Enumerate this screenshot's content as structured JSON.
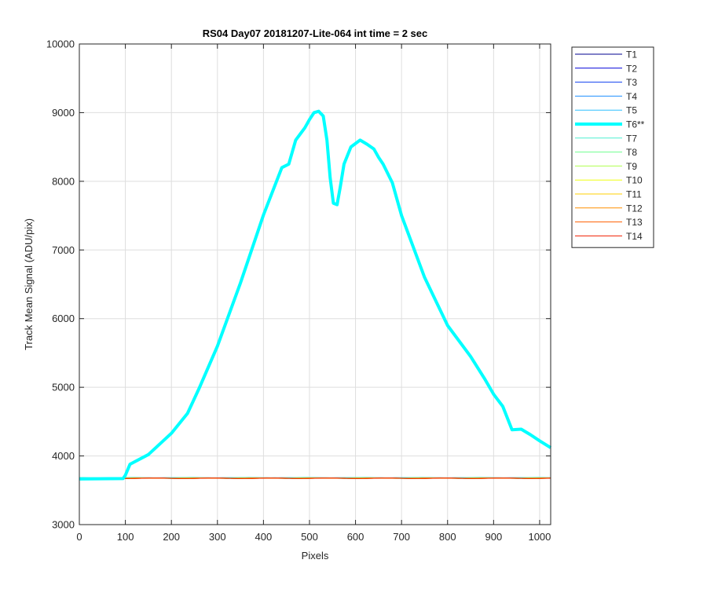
{
  "chart_data": {
    "type": "line",
    "title": "RS04 Day07 20181207-Lite-064 int time = 2 sec",
    "xlabel": "Pixels",
    "ylabel": "Track Mean Signal (ADU/pix)",
    "xlim": [
      0,
      1024
    ],
    "ylim": [
      3000,
      10000
    ],
    "xticks": [
      0,
      100,
      200,
      300,
      400,
      500,
      600,
      700,
      800,
      900,
      1000
    ],
    "yticks": [
      3000,
      4000,
      5000,
      6000,
      7000,
      8000,
      9000,
      10000
    ],
    "grid": true,
    "legend_position": "outside-top-right",
    "series": [
      {
        "name": "T1",
        "color": "#00008f",
        "width": 1,
        "baseline": 3678
      },
      {
        "name": "T2",
        "color": "#0000d9",
        "width": 1,
        "baseline": 3676
      },
      {
        "name": "T3",
        "color": "#0f3ff0",
        "width": 1,
        "baseline": 3679
      },
      {
        "name": "T4",
        "color": "#1f8fff",
        "width": 1,
        "baseline": 3677
      },
      {
        "name": "T5",
        "color": "#2fbfff",
        "width": 1,
        "baseline": 3680
      },
      {
        "name": "T6**",
        "color": "#00ffff",
        "width": 4,
        "highlight": true,
        "x": [
          0,
          95,
          100,
          110,
          150,
          200,
          235,
          260,
          300,
          350,
          400,
          440,
          455,
          470,
          490,
          500,
          510,
          520,
          530,
          538,
          545,
          552,
          560,
          567,
          575,
          590,
          610,
          625,
          640,
          650,
          660,
          680,
          700,
          750,
          800,
          850,
          880,
          900,
          920,
          940,
          960,
          980,
          1000,
          1024
        ],
        "y": [
          3665,
          3670,
          3720,
          3880,
          4020,
          4330,
          4620,
          4980,
          5600,
          6520,
          7510,
          8200,
          8250,
          8600,
          8780,
          8900,
          9000,
          9020,
          8950,
          8600,
          8050,
          7680,
          7660,
          7920,
          8250,
          8500,
          8600,
          8540,
          8470,
          8350,
          8250,
          7980,
          7500,
          6600,
          5900,
          5450,
          5130,
          4900,
          4720,
          4380,
          4390,
          4310,
          4220,
          4120
        ]
      },
      {
        "name": "T7",
        "color": "#4fefd0",
        "width": 1,
        "baseline": 3684
      },
      {
        "name": "T8",
        "color": "#6fff8f",
        "width": 1,
        "baseline": 3678
      },
      {
        "name": "T9",
        "color": "#afff4f",
        "width": 1,
        "baseline": 3675
      },
      {
        "name": "T10",
        "color": "#efff0f",
        "width": 1,
        "baseline": 3677
      },
      {
        "name": "T11",
        "color": "#ffcf00",
        "width": 1,
        "baseline": 3676
      },
      {
        "name": "T12",
        "color": "#ff8f00",
        "width": 1,
        "baseline": 3675
      },
      {
        "name": "T13",
        "color": "#ff5f00",
        "width": 1,
        "baseline": 3676
      },
      {
        "name": "T14",
        "color": "#f01f00",
        "width": 1,
        "baseline": 3675
      }
    ]
  }
}
